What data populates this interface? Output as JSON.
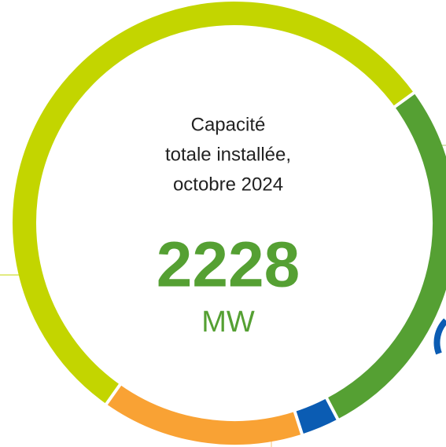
{
  "chart_data": {
    "type": "donut",
    "center_text": [
      "Capacité",
      "totale installée,",
      "octobre 2024"
    ],
    "total": 2228,
    "unit": "MW",
    "series": [
      {
        "color": "#55a033",
        "value": 608
      },
      {
        "color": "#0b5cb3",
        "value": 62
      },
      {
        "color": "#f9a234",
        "value": 328
      },
      {
        "color": "#c3d500",
        "value": 1230
      }
    ]
  }
}
